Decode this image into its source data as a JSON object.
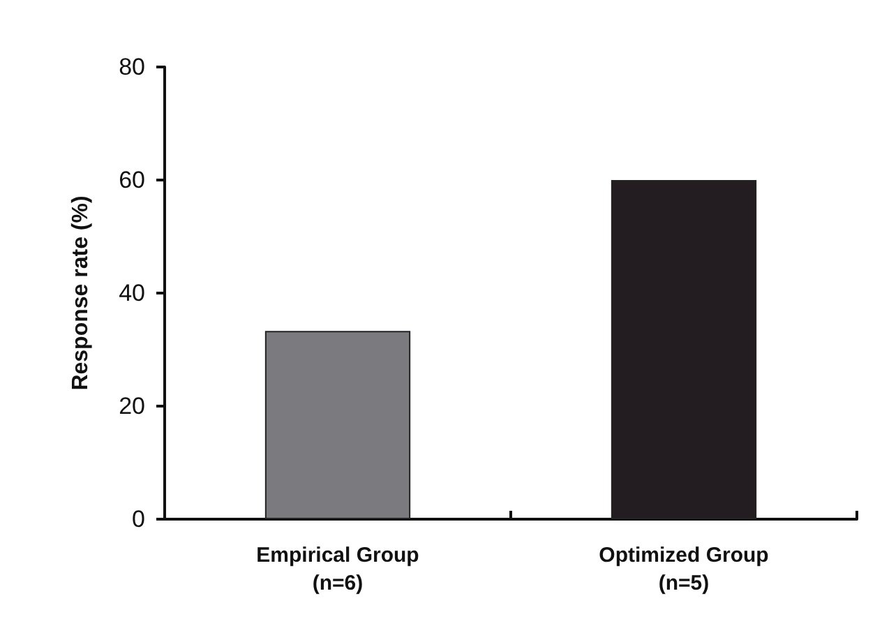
{
  "chart_data": {
    "type": "bar",
    "ylabel": "Response rate (%)",
    "categories": [
      "Empirical Group\n(n=6)",
      "Optimized Group\n(n=5)"
    ],
    "values": [
      33.3,
      60
    ],
    "colors": [
      "#7b7a7e",
      "#231c20"
    ],
    "ylim": [
      0,
      80
    ],
    "yticks": [
      0,
      20,
      40,
      60,
      80
    ],
    "grid": false
  }
}
